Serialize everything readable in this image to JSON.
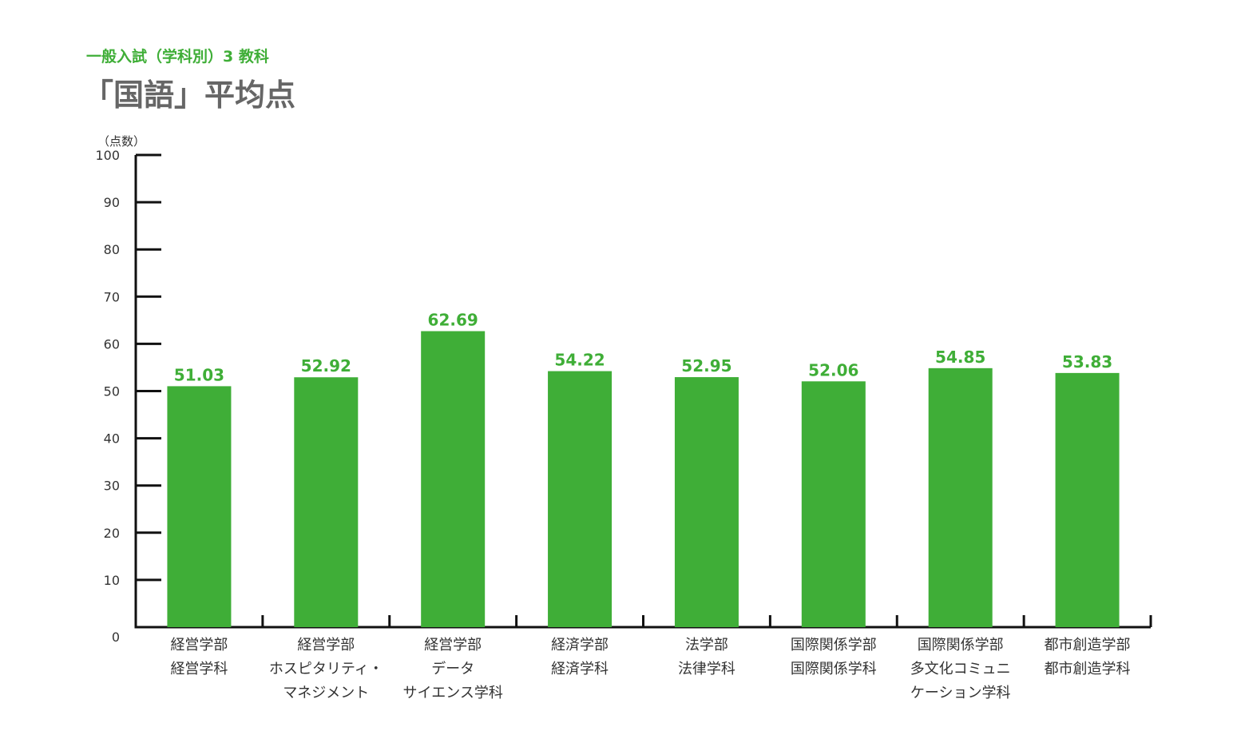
{
  "header": {
    "subtitle": "一般入試（学科別）3 教科",
    "title": "「国語」平均点"
  },
  "chart_data": {
    "type": "bar",
    "ylabel": "（点数）",
    "ylim": [
      0,
      100
    ],
    "yticks": [
      0,
      10,
      20,
      30,
      40,
      50,
      60,
      70,
      80,
      90,
      100
    ],
    "bar_color": "#3fae37",
    "categories": [
      [
        "経営学部",
        "経営学科"
      ],
      [
        "経営学部",
        "ホスピタリティ・",
        "マネジメント"
      ],
      [
        "経営学部",
        "データ",
        "サイエンス学科"
      ],
      [
        "経済学部",
        "経済学科"
      ],
      [
        "法学部",
        "法律学科"
      ],
      [
        "国際関係学部",
        "国際関係学科"
      ],
      [
        "国際関係学部",
        "多文化コミュニ",
        "ケーション学科"
      ],
      [
        "都市創造学部",
        "都市創造学科"
      ]
    ],
    "values": [
      51.03,
      52.92,
      62.69,
      54.22,
      52.95,
      52.06,
      54.85,
      53.83
    ],
    "value_labels": [
      "51.03",
      "52.92",
      "62.69",
      "54.22",
      "52.95",
      "52.06",
      "54.85",
      "53.83"
    ]
  }
}
